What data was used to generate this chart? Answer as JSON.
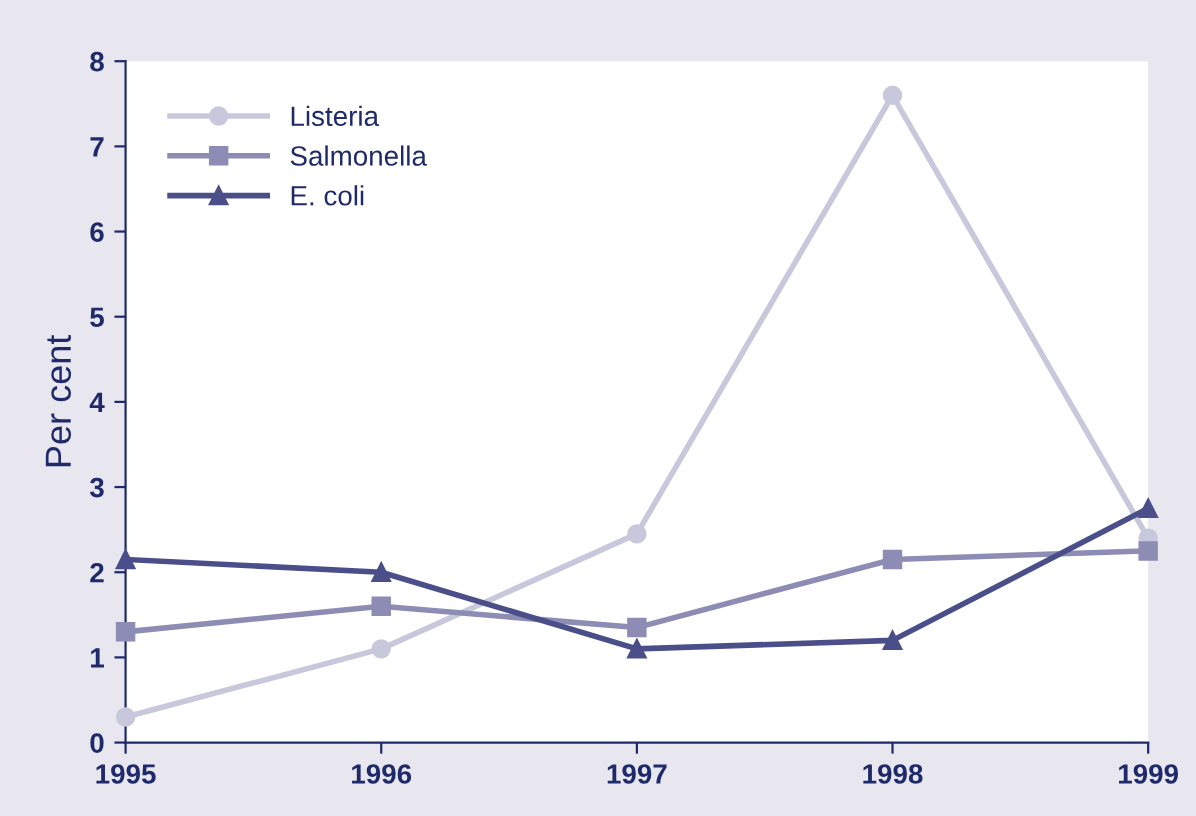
{
  "chart_data": {
    "type": "line",
    "ylabel": "Per cent",
    "x": [
      1995,
      1996,
      1997,
      1998,
      1999
    ],
    "xlim": [
      1995,
      1999
    ],
    "xticks": [
      1995,
      1996,
      1997,
      1998,
      1999
    ],
    "ylim": [
      0,
      8
    ],
    "yticks": [
      0,
      1,
      2,
      3,
      4,
      5,
      6,
      7,
      8
    ],
    "grid": false,
    "legend": "top left",
    "line_style": "solid",
    "series": [
      {
        "name": "Listeria",
        "color": "#c8c8dc",
        "marker": "circle",
        "values": [
          0.3,
          1.1,
          2.45,
          7.6,
          2.4
        ]
      },
      {
        "name": "Salmonella",
        "color": "#8c8cb4",
        "marker": "square",
        "values": [
          1.3,
          1.6,
          1.35,
          2.15,
          2.25
        ]
      },
      {
        "name": "E. coli",
        "color": "#4a4f8a",
        "marker": "triangle",
        "values": [
          2.15,
          2.0,
          1.1,
          1.2,
          2.75
        ]
      }
    ]
  }
}
